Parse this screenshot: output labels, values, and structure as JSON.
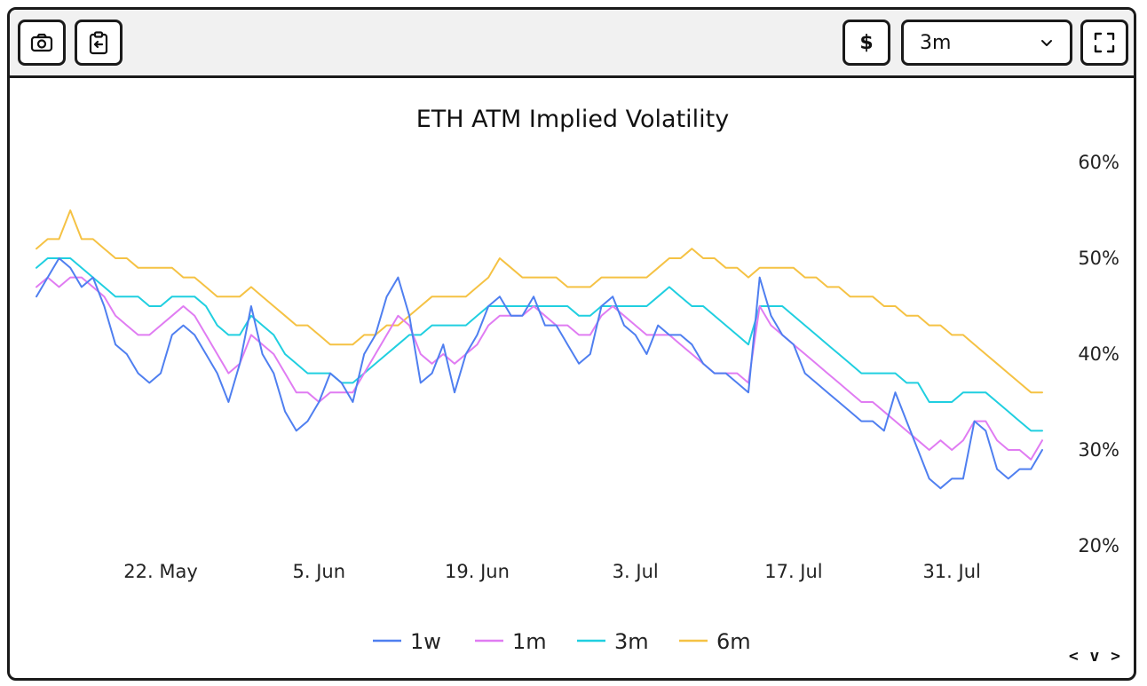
{
  "toolbar": {
    "currency_label": "$",
    "range_value": "3m",
    "buttons": [
      "camera-icon",
      "clipboard-icon",
      "fullscreen-icon",
      "chevron-down-icon"
    ]
  },
  "footer": {
    "nav_label": "< v >"
  },
  "chart_data": {
    "type": "line",
    "title": "ETH ATM Implied Volatility",
    "xlabel": "",
    "ylabel": "",
    "y_axis_side": "right",
    "ylim": [
      20,
      60
    ],
    "yticks": [
      20,
      30,
      40,
      50,
      60
    ],
    "ytick_labels": [
      "20%",
      "30%",
      "40%",
      "50%",
      "60%"
    ],
    "x_start": "11. May",
    "x_end": "8. Aug",
    "xlim_days": [
      0,
      89
    ],
    "xticks": [
      {
        "day": 11,
        "label": "22. May"
      },
      {
        "day": 25,
        "label": "5. Jun"
      },
      {
        "day": 39,
        "label": "19. Jun"
      },
      {
        "day": 53,
        "label": "3. Jul"
      },
      {
        "day": 67,
        "label": "17. Jul"
      },
      {
        "day": 81,
        "label": "31. Jul"
      }
    ],
    "legend_position": "bottom-center",
    "x_days": [
      0,
      1,
      2,
      3,
      4,
      5,
      6,
      7,
      8,
      9,
      10,
      11,
      12,
      13,
      14,
      15,
      16,
      17,
      18,
      19,
      20,
      21,
      22,
      23,
      24,
      25,
      26,
      27,
      28,
      29,
      30,
      31,
      32,
      33,
      34,
      35,
      36,
      37,
      38,
      39,
      40,
      41,
      42,
      43,
      44,
      45,
      46,
      47,
      48,
      49,
      50,
      51,
      52,
      53,
      54,
      55,
      56,
      57,
      58,
      59,
      60,
      61,
      62,
      63,
      64,
      65,
      66,
      67,
      68,
      69,
      70,
      71,
      72,
      73,
      74,
      75,
      76,
      77,
      78,
      79,
      80,
      81,
      82,
      83,
      84,
      85,
      86,
      87,
      88,
      89
    ],
    "series": [
      {
        "name": "1w",
        "color": "#4f7ff0",
        "values": [
          46,
          48,
          50,
          49,
          47,
          48,
          45,
          41,
          40,
          38,
          37,
          38,
          42,
          43,
          42,
          40,
          38,
          35,
          39,
          45,
          40,
          38,
          34,
          32,
          33,
          35,
          38,
          37,
          35,
          40,
          42,
          46,
          48,
          44,
          37,
          38,
          41,
          36,
          40,
          42,
          45,
          46,
          44,
          44,
          46,
          43,
          43,
          41,
          39,
          40,
          45,
          46,
          43,
          42,
          40,
          43,
          42,
          42,
          41,
          39,
          38,
          38,
          37,
          36,
          48,
          44,
          42,
          41,
          38,
          37,
          36,
          35,
          34,
          33,
          33,
          32,
          36,
          33,
          30,
          27,
          26,
          27,
          27,
          33,
          32,
          28,
          27,
          28,
          28,
          30
        ]
      },
      {
        "name": "1m",
        "color": "#e07cf2",
        "values": [
          47,
          48,
          47,
          48,
          48,
          47,
          46,
          44,
          43,
          42,
          42,
          43,
          44,
          45,
          44,
          42,
          40,
          38,
          39,
          42,
          41,
          40,
          38,
          36,
          36,
          35,
          36,
          36,
          36,
          38,
          40,
          42,
          44,
          43,
          40,
          39,
          40,
          39,
          40,
          41,
          43,
          44,
          44,
          44,
          45,
          44,
          43,
          43,
          42,
          42,
          44,
          45,
          44,
          43,
          42,
          42,
          42,
          41,
          40,
          39,
          38,
          38,
          38,
          37,
          45,
          43,
          42,
          41,
          40,
          39,
          38,
          37,
          36,
          35,
          35,
          34,
          33,
          32,
          31,
          30,
          31,
          30,
          31,
          33,
          33,
          31,
          30,
          30,
          29,
          31
        ]
      },
      {
        "name": "3m",
        "color": "#20cfe0",
        "values": [
          49,
          50,
          50,
          50,
          49,
          48,
          47,
          46,
          46,
          46,
          45,
          45,
          46,
          46,
          46,
          45,
          43,
          42,
          42,
          44,
          43,
          42,
          40,
          39,
          38,
          38,
          38,
          37,
          37,
          38,
          39,
          40,
          41,
          42,
          42,
          43,
          43,
          43,
          43,
          44,
          45,
          45,
          45,
          45,
          45,
          45,
          45,
          45,
          44,
          44,
          45,
          45,
          45,
          45,
          45,
          46,
          47,
          46,
          45,
          45,
          44,
          43,
          42,
          41,
          45,
          45,
          45,
          44,
          43,
          42,
          41,
          40,
          39,
          38,
          38,
          38,
          38,
          37,
          37,
          35,
          35,
          35,
          36,
          36,
          36,
          35,
          34,
          33,
          32,
          32
        ]
      },
      {
        "name": "6m",
        "color": "#f5c244",
        "values": [
          51,
          52,
          52,
          55,
          52,
          52,
          51,
          50,
          50,
          49,
          49,
          49,
          49,
          48,
          48,
          47,
          46,
          46,
          46,
          47,
          46,
          45,
          44,
          43,
          43,
          42,
          41,
          41,
          41,
          42,
          42,
          43,
          43,
          44,
          45,
          46,
          46,
          46,
          46,
          47,
          48,
          50,
          49,
          48,
          48,
          48,
          48,
          47,
          47,
          47,
          48,
          48,
          48,
          48,
          48,
          49,
          50,
          50,
          51,
          50,
          50,
          49,
          49,
          48,
          49,
          49,
          49,
          49,
          48,
          48,
          47,
          47,
          46,
          46,
          46,
          45,
          45,
          44,
          44,
          43,
          43,
          42,
          42,
          41,
          40,
          39,
          38,
          37,
          36,
          36
        ]
      }
    ]
  }
}
